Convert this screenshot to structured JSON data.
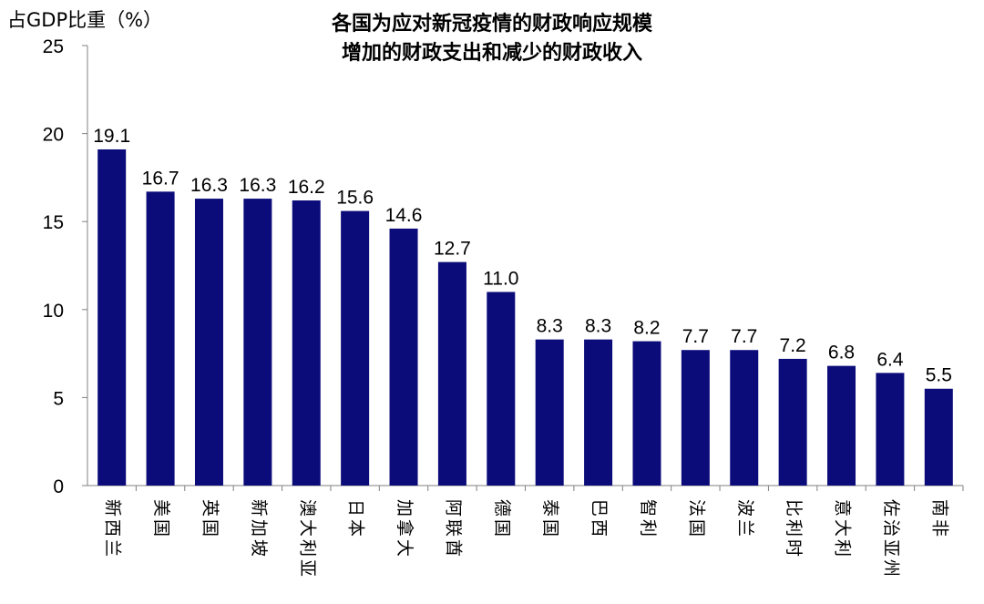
{
  "chart_data": {
    "type": "bar",
    "title_line1": "各国为应对新冠疫情的财政响应规模",
    "title_line2": "增加的财政支出和减少的财政收入",
    "ylabel": "占GDP比重（%）",
    "ylim": [
      0,
      25
    ],
    "yticks": [
      0,
      5,
      10,
      15,
      20,
      25
    ],
    "bar_color": "#0b0b7a",
    "categories": [
      "新西兰",
      "美国",
      "英国",
      "新加坡",
      "澳大利亚",
      "日本",
      "加拿大",
      "阿联酋",
      "德国",
      "泰国",
      "巴西",
      "智利",
      "法国",
      "波兰",
      "比利时",
      "意大利",
      "佐治亚州",
      "南非"
    ],
    "values": [
      19.1,
      16.7,
      16.3,
      16.3,
      16.2,
      15.6,
      14.6,
      12.7,
      11.0,
      8.3,
      8.3,
      8.2,
      7.7,
      7.7,
      7.2,
      6.8,
      6.4,
      5.5
    ],
    "labels": [
      "19.1",
      "16.7",
      "16.3",
      "16.3",
      "16.2",
      "15.6",
      "14.6",
      "12.7",
      "11.0",
      "8.3",
      "8.3",
      "8.2",
      "7.7",
      "7.7",
      "7.2",
      "6.8",
      "6.4",
      "5.5"
    ]
  }
}
